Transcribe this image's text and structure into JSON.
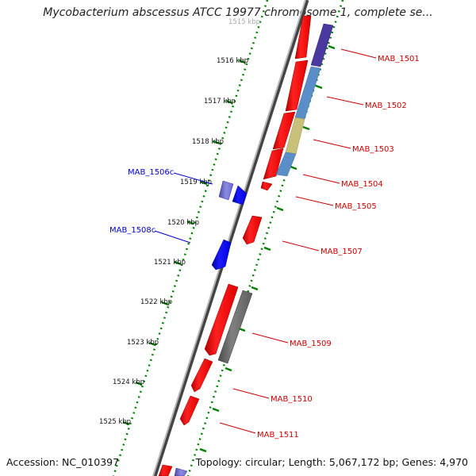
{
  "title": "Mycobacterium abscessus ATCC 19977 chromosome 1, complete se...",
  "footer": {
    "accession": "Accession: NC_010397",
    "summary": "Topology: circular; Length: 5,067,172 bp; Genes: 4,970"
  },
  "scale": {
    "top_label": "1515 kbp",
    "labels": [
      "1516 kbp",
      "1517 kbp",
      "1518 kbp",
      "1519 kbp",
      "1520 kbp",
      "1521 kbp",
      "1522 kbp",
      "1523 kbp",
      "1524 kbp",
      "1525 kbp"
    ]
  },
  "colors": {
    "forward": "#ff0000",
    "reverse": "#0000ff",
    "pseudo": "#6f6f6f",
    "axis": "#008000",
    "label_forward": "#cc0000",
    "label_reverse": "#0000cc"
  },
  "genes": {
    "mab_1501": "MAB_1501",
    "mab_1502": "MAB_1502",
    "mab_1503": "MAB_1503",
    "mab_1504": "MAB_1504",
    "mab_1505": "MAB_1505",
    "mab_1506c": "MAB_1506c",
    "mab_1507": "MAB_1507",
    "mab_1508c": "MAB_1508c",
    "mab_1509": "MAB_1509",
    "mab_1510": "MAB_1510",
    "mab_1511": "MAB_1511"
  }
}
